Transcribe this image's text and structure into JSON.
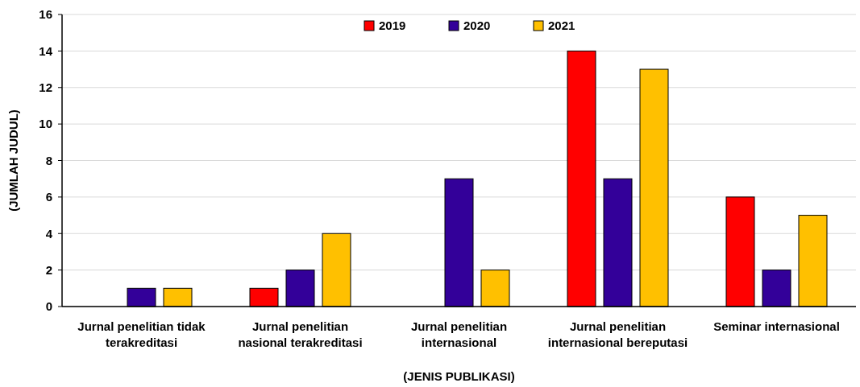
{
  "chart_data": {
    "type": "bar",
    "xlabel": "(JENIS PUBLIKASI)",
    "ylabel": "(JUMLAH JUDUL)",
    "categories": [
      "Jurnal penelitian tidak terakreditasi",
      "Jurnal penelitian nasional terakreditasi",
      "Jurnal penelitian internasional",
      "Jurnal penelitian internasional bereputasi",
      "Seminar internasional"
    ],
    "series": [
      {
        "name": "2019",
        "color": "#ff0000",
        "values": [
          0,
          1,
          0,
          14,
          6
        ]
      },
      {
        "name": "2020",
        "color": "#330099",
        "values": [
          1,
          2,
          7,
          7,
          2
        ]
      },
      {
        "name": "2021",
        "color": "#ffc000",
        "values": [
          1,
          4,
          2,
          13,
          5
        ]
      }
    ],
    "ylim": [
      0,
      16
    ],
    "yticks": [
      0,
      2,
      4,
      6,
      8,
      10,
      12,
      14,
      16
    ],
    "grid": "y",
    "legend": "top"
  }
}
